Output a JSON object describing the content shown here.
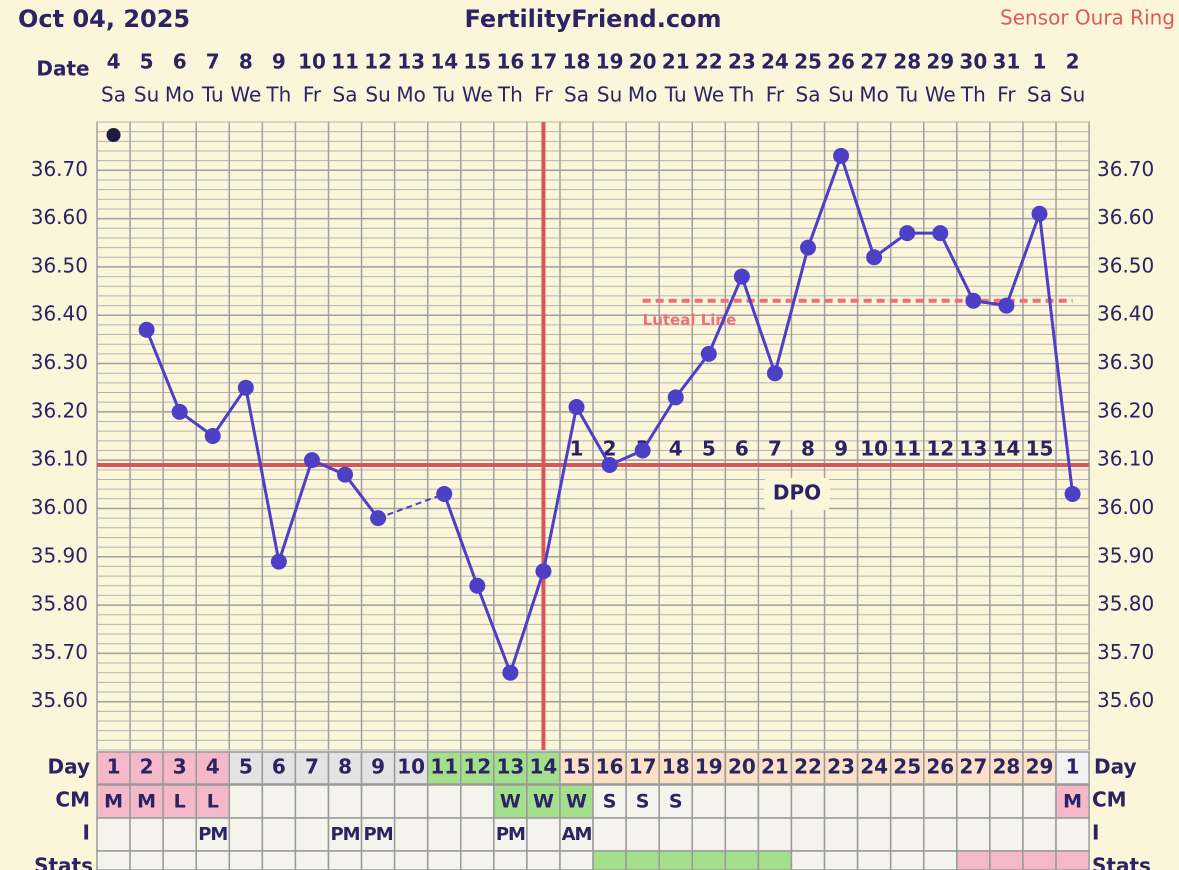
{
  "chart_data": {
    "type": "line",
    "title": "FertilityFriend.com",
    "date_label": "Oct 04, 2025",
    "sensor": "Sensor Oura Ring",
    "row_labels": {
      "date": "Date",
      "day": "Day",
      "cm": "CM",
      "i": "I",
      "stats": "Stats"
    },
    "categories": [
      "4",
      "5",
      "6",
      "7",
      "8",
      "9",
      "10",
      "11",
      "12",
      "13",
      "14",
      "15",
      "16",
      "17",
      "18",
      "19",
      "20",
      "21",
      "22",
      "23",
      "24",
      "25",
      "26",
      "27",
      "28",
      "29",
      "30",
      "31",
      "1",
      "2"
    ],
    "weekdays": [
      "Sa",
      "Su",
      "Mo",
      "Tu",
      "We",
      "Th",
      "Fr",
      "Sa",
      "Su",
      "Mo",
      "Tu",
      "We",
      "Th",
      "Fr",
      "Sa",
      "Su",
      "Mo",
      "Tu",
      "We",
      "Th",
      "Fr",
      "Sa",
      "Su",
      "Mo",
      "Tu",
      "We",
      "Th",
      "Fr",
      "Sa",
      "Su"
    ],
    "cycle_days": [
      1,
      2,
      3,
      4,
      5,
      6,
      7,
      8,
      9,
      10,
      11,
      12,
      13,
      14,
      15,
      16,
      17,
      18,
      19,
      20,
      21,
      22,
      23,
      24,
      25,
      26,
      27,
      28,
      29,
      1
    ],
    "values": [
      null,
      36.37,
      36.2,
      36.15,
      36.25,
      35.89,
      36.1,
      36.07,
      35.98,
      null,
      36.03,
      35.84,
      35.66,
      35.87,
      36.21,
      36.09,
      36.12,
      36.23,
      36.32,
      36.48,
      36.28,
      36.54,
      36.73,
      36.52,
      36.57,
      36.57,
      36.43,
      36.42,
      36.61,
      36.03
    ],
    "color": "#4d3fc6",
    "ylim": [
      35.5,
      36.8
    ],
    "yticks": [
      {
        "value": 35.6,
        "label": "35.60"
      },
      {
        "value": 35.7,
        "label": "35.70"
      },
      {
        "value": 35.8,
        "label": "35.80"
      },
      {
        "value": 35.9,
        "label": "35.90"
      },
      {
        "value": 36.0,
        "label": "36.00"
      },
      {
        "value": 36.1,
        "label": "36.10"
      },
      {
        "value": 36.2,
        "label": "36.20"
      },
      {
        "value": 36.3,
        "label": "36.30"
      },
      {
        "value": 36.4,
        "label": "36.40"
      },
      {
        "value": 36.5,
        "label": "36.50"
      },
      {
        "value": 36.6,
        "label": "36.60"
      },
      {
        "value": 36.7,
        "label": "36.70"
      }
    ],
    "grid": true,
    "coverline": {
      "value": 36.09,
      "color": "#d9555c"
    },
    "ovulation_day": 14,
    "luteal_line": {
      "value": 36.43,
      "label": "Luteal Line",
      "from_day": 17,
      "color": "#ee6f7b"
    },
    "dpo": [
      null,
      null,
      null,
      null,
      null,
      null,
      null,
      null,
      null,
      null,
      null,
      null,
      null,
      null,
      1,
      2,
      3,
      4,
      5,
      6,
      7,
      8,
      9,
      10,
      11,
      12,
      13,
      14,
      15,
      null
    ],
    "dpo_label": "DPO",
    "day_fills": [
      "#f4b8c9",
      "#f4b8c9",
      "#f4b8c9",
      "#f4b8c9",
      "#e3e3e3",
      "#e3e3e3",
      "#e3e3e3",
      "#e3e3e3",
      "#e3e3e3",
      "#e3e3e3",
      "#a4e08c",
      "#a4e08c",
      "#a4e08c",
      "#a4e08c",
      "#fbe1c6",
      "#fbe1c6",
      "#fbe1c6",
      "#fbe1c6",
      "#fbe1c6",
      "#fbe1c6",
      "#fbe1c6",
      "#fbe1c6",
      "#fbe1c6",
      "#fbe1c6",
      "#fbe1c6",
      "#fbe1c6",
      "#fbe1c6",
      "#fbe1c6",
      "#fbe1c6",
      "#f2f2f2"
    ],
    "cm": [
      "M",
      "M",
      "L",
      "L",
      null,
      null,
      null,
      null,
      null,
      null,
      null,
      null,
      "W",
      "W",
      "W",
      "S",
      "S",
      "S",
      null,
      null,
      null,
      null,
      null,
      null,
      null,
      null,
      null,
      null,
      null,
      "M"
    ],
    "cm_fills": [
      "#f4b8c9",
      "#f4b8c9",
      "#f4b8c9",
      "#f4b8c9",
      null,
      null,
      null,
      null,
      null,
      null,
      null,
      null,
      "#a4e08c",
      "#a4e08c",
      "#a4e08c",
      null,
      null,
      null,
      null,
      null,
      null,
      null,
      null,
      null,
      null,
      null,
      null,
      null,
      null,
      "#f4b8c9"
    ],
    "intercourse": [
      null,
      null,
      null,
      "PM",
      null,
      null,
      null,
      "PM",
      "PM",
      null,
      null,
      null,
      "PM",
      null,
      "AM",
      null,
      null,
      null,
      null,
      null,
      null,
      null,
      null,
      null,
      null,
      null,
      null,
      null,
      null,
      null
    ],
    "stats_fills": [
      null,
      null,
      null,
      null,
      null,
      null,
      null,
      null,
      null,
      null,
      null,
      null,
      null,
      null,
      null,
      "#a4e08c",
      "#a4e08c",
      "#a4e08c",
      "#a4e08c",
      "#a4e08c",
      "#a4e08c",
      null,
      null,
      null,
      null,
      null,
      "#f4b8c9",
      "#f4b8c9",
      "#f4b8c9",
      "#f4b8c9"
    ]
  }
}
